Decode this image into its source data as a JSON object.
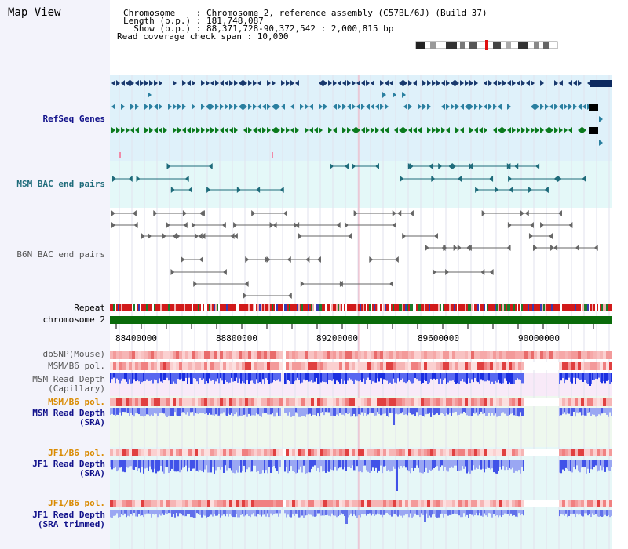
{
  "header": {
    "title": "Map View",
    "chromosome_line": "Chromosome    : Chromosome 2, reference assembly (C57BL/6J) (Build 37)",
    "length_line": "Length (b.p.) : 181,748,087",
    "show_line": "  Show (b.p.) : 88,371,728-90,372,542 : 2,000,815 bp",
    "coverage_line": "Read coverage check span : 10,000"
  },
  "tracks": {
    "refseq": "RefSeq Genes",
    "msm_bac": "MSM BAC end pairs",
    "b6n_bac": "B6N BAC end pairs",
    "repeat": "Repeat",
    "chromosome": "chromosome 2",
    "dbsnp": "dbSNP(Mouse)",
    "msm_b6_pol_1": "MSM/B6 pol.",
    "msm_depth_cap": "MSM Read Depth\n(Capillary)",
    "msm_b6_pol_2": "MSM/B6 pol.",
    "msm_depth_sra": "MSM Read Depth\n(SRA)",
    "jf1_b6_pol_1": "JF1/B6 pol.",
    "jf1_depth_sra": "JF1 Read Depth\n(SRA)",
    "jf1_b6_pol_2": "JF1/B6 pol.",
    "jf1_depth_trim": "JF1 Read Depth\n(SRA trimmed)"
  },
  "axis": {
    "ticks": [
      "88400000",
      "88800000",
      "89200000",
      "89600000",
      "90000000"
    ]
  },
  "colors": {
    "refseq_bg": "#dff1fa",
    "msm_bac_bg": "#e4f8f8",
    "repeat_red": "#d11a1a",
    "chromosome_green": "#0a6b0a",
    "depth_blue": "#3344ee",
    "depth_light": "#9aa7f3",
    "pol_red": "#f09a9a"
  }
}
